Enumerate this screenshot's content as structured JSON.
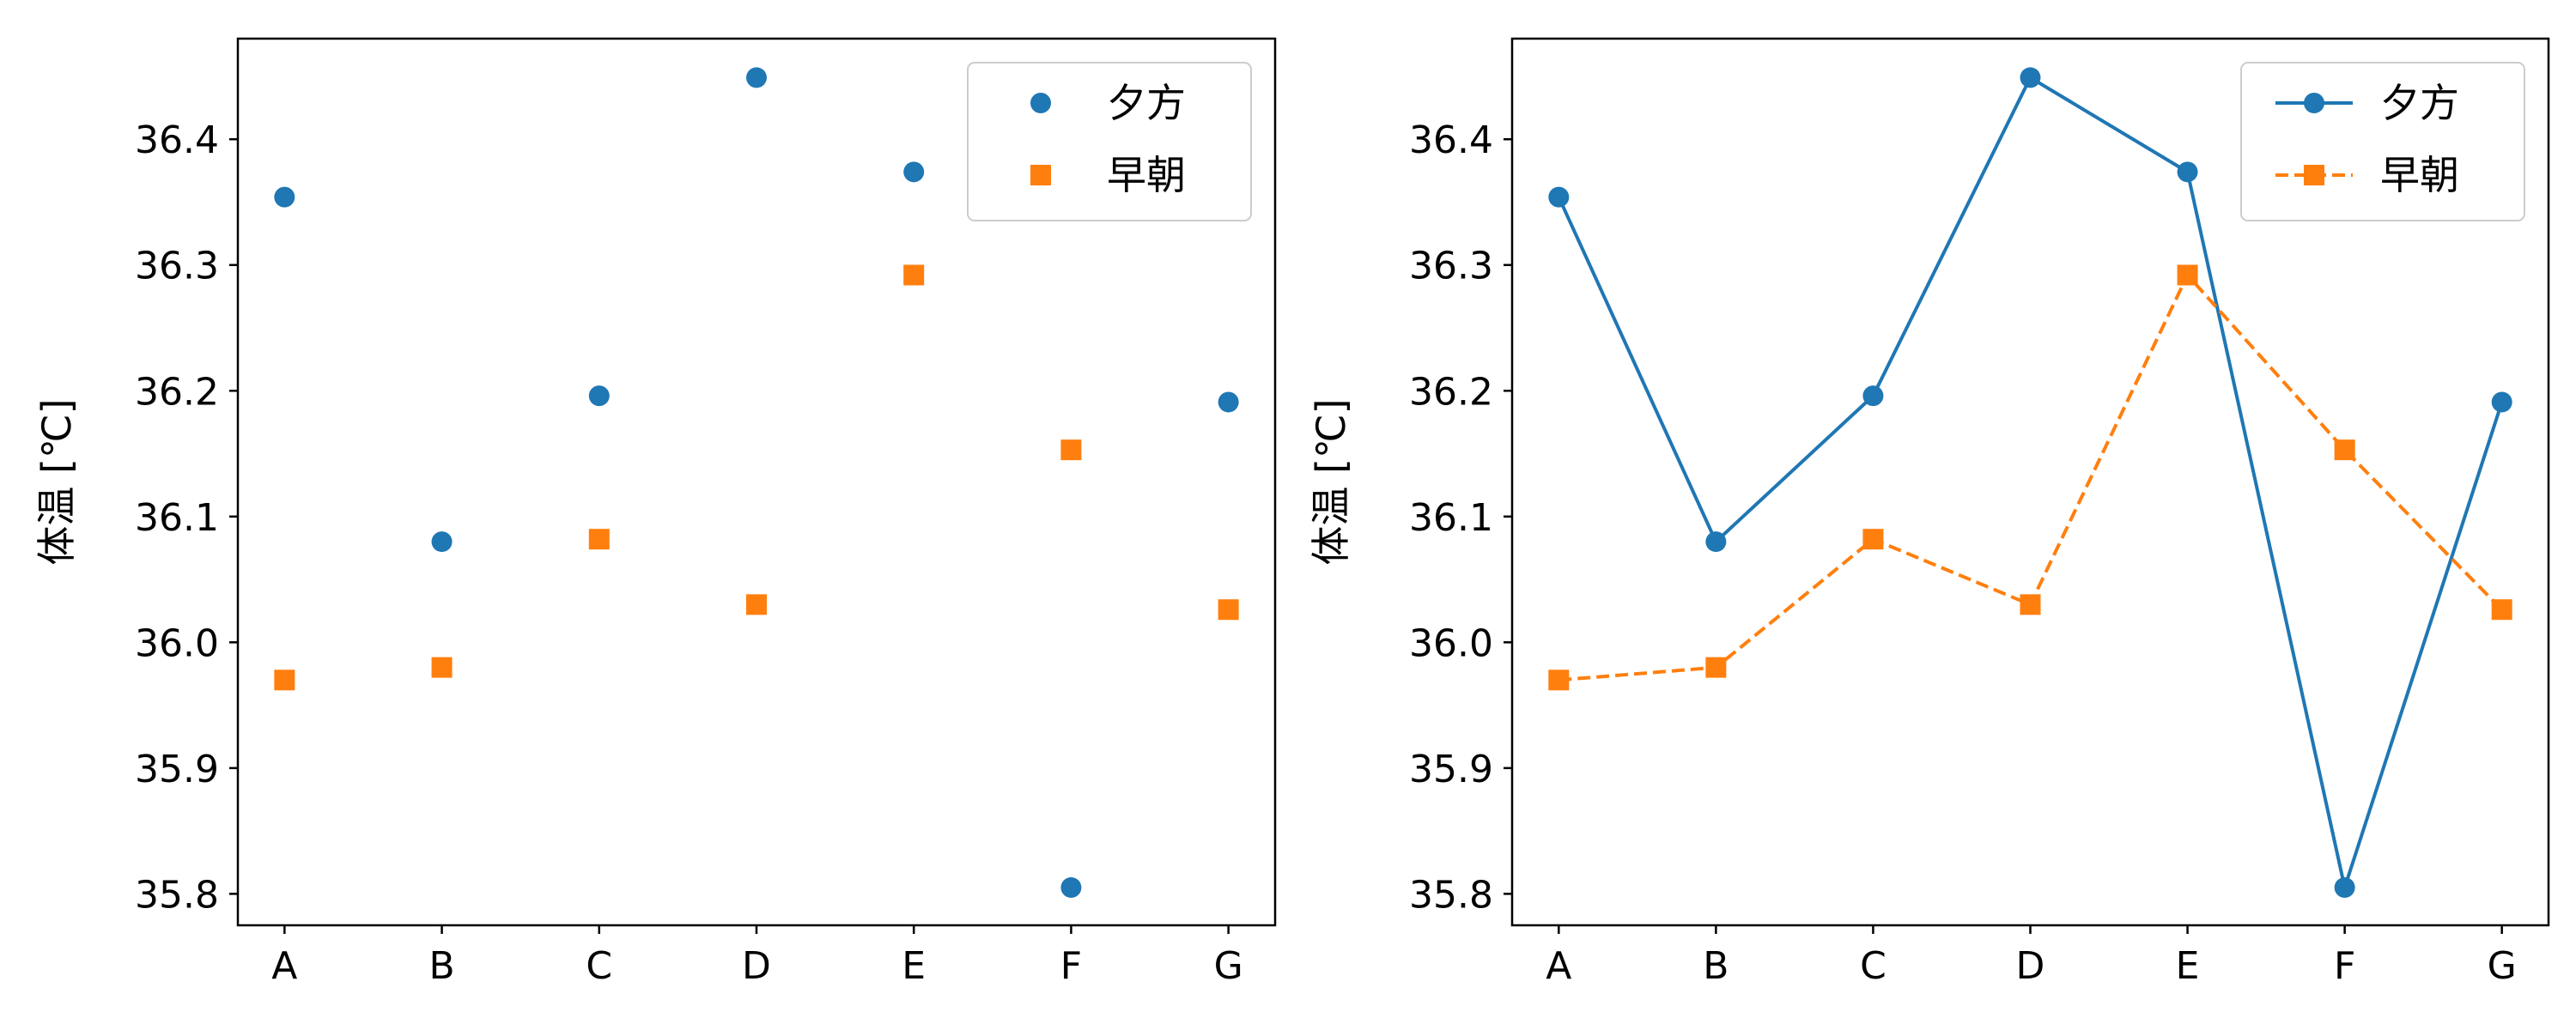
{
  "chart_data": [
    {
      "type": "scatter",
      "categories": [
        "A",
        "B",
        "C",
        "D",
        "E",
        "F",
        "G"
      ],
      "ylabel": "体温 [℃]",
      "ylim": [
        35.775,
        36.48
      ],
      "yticks": [
        "35.8",
        "35.9",
        "36.0",
        "36.1",
        "36.2",
        "36.3",
        "36.4"
      ],
      "legend_position": "top-right",
      "grid": false,
      "series": [
        {
          "name": "夕方",
          "color": "#1f77b4",
          "marker": "circle",
          "values": [
            36.354,
            36.08,
            36.196,
            36.449,
            36.374,
            35.805,
            36.191
          ]
        },
        {
          "name": "早朝",
          "color": "#ff7f0e",
          "marker": "square",
          "values": [
            35.97,
            35.98,
            36.082,
            36.03,
            36.292,
            36.153,
            36.026
          ]
        }
      ]
    },
    {
      "type": "line",
      "categories": [
        "A",
        "B",
        "C",
        "D",
        "E",
        "F",
        "G"
      ],
      "ylabel": "体温 [℃]",
      "ylim": [
        35.775,
        36.48
      ],
      "yticks": [
        "35.8",
        "35.9",
        "36.0",
        "36.1",
        "36.2",
        "36.3",
        "36.4"
      ],
      "legend_position": "top-right",
      "grid": false,
      "series": [
        {
          "name": "夕方",
          "color": "#1f77b4",
          "marker": "circle",
          "line": "solid",
          "values": [
            36.354,
            36.08,
            36.196,
            36.449,
            36.374,
            35.805,
            36.191
          ]
        },
        {
          "name": "早朝",
          "color": "#ff7f0e",
          "marker": "square",
          "line": "dashed",
          "values": [
            35.97,
            35.98,
            36.082,
            36.03,
            36.292,
            36.153,
            36.026
          ]
        }
      ]
    }
  ]
}
